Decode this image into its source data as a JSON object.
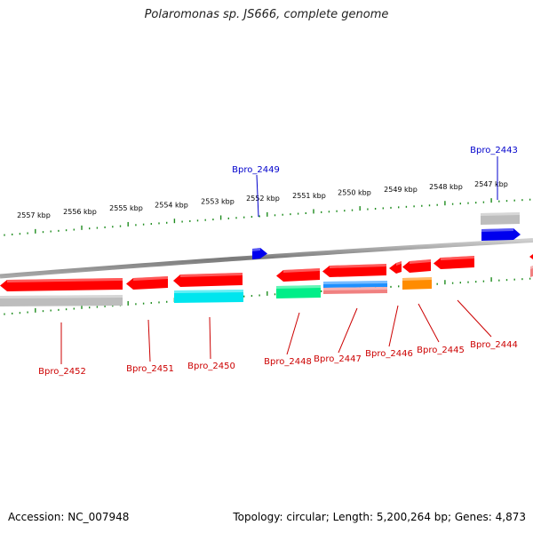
{
  "title": "Polaromonas sp. JS666, complete genome",
  "footer": {
    "accession": "Accession: NC_007948",
    "summary": "Topology: circular; Length: 5,200,264 bp; Genes: 4,873"
  },
  "colors": {
    "backbone": "#8c8c8c",
    "ticks": "#1e8c1e",
    "cds": "#ff0000",
    "cds_forward": "#0000ee",
    "rrna_or_misc": "#00e5ee",
    "misc_green": "#00ee88",
    "misc_blue": "#1e90ff",
    "misc_pink": "#f08080",
    "misc_orange": "#ff8c00",
    "gene_grey": "#bdbdbd",
    "label_red": "#cc0000",
    "label_blue": "#0000cc"
  },
  "ruler": {
    "labels": [
      "2557 kbp",
      "2556 kbp",
      "2555 kbp",
      "2554 kbp",
      "2553 kbp",
      "2552 kbp",
      "2551 kbp",
      "2550 kbp",
      "2549 kbp",
      "2548 kbp",
      "2547 kbp"
    ]
  },
  "genes": [
    {
      "id": "Bpro_2452",
      "strand": "reverse"
    },
    {
      "id": "Bpro_2451",
      "strand": "reverse"
    },
    {
      "id": "Bpro_2450",
      "strand": "reverse"
    },
    {
      "id": "Bpro_2449",
      "strand": "forward"
    },
    {
      "id": "Bpro_2448",
      "strand": "reverse"
    },
    {
      "id": "Bpro_2447",
      "strand": "reverse"
    },
    {
      "id": "Bpro_2446",
      "strand": "reverse"
    },
    {
      "id": "Bpro_2445",
      "strand": "reverse"
    },
    {
      "id": "Bpro_2444",
      "strand": "reverse"
    },
    {
      "id": "Bpro_2443",
      "strand": "forward"
    }
  ]
}
